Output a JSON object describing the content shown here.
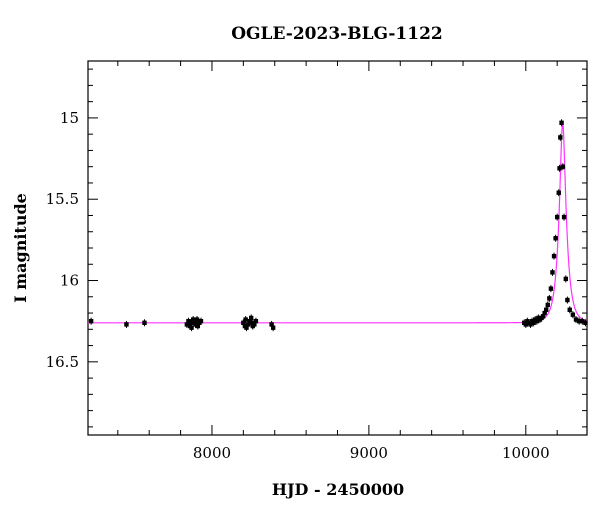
{
  "chart_data": {
    "type": "scatter",
    "title": "OGLE-2023-BLG-1122",
    "xlabel": "HJD - 2450000",
    "ylabel": "I magnitude",
    "xlim": [
      7210,
      10390
    ],
    "ylim": [
      16.95,
      14.65
    ],
    "y_inverted": true,
    "x_major_ticks": [
      8000,
      9000,
      10000
    ],
    "x_minor_step": 200,
    "y_major_ticks": [
      15,
      15.5,
      16,
      16.5
    ],
    "y_minor_step": 0.1,
    "x_tick_labels": [
      "8000",
      "9000",
      "10000"
    ],
    "y_tick_labels": [
      "15",
      "15.5",
      "16",
      "16.5"
    ],
    "model": {
      "color": "#ff33ff",
      "baseline": 16.26,
      "t0": 10235,
      "peak": 15.03,
      "tE": 45
    },
    "series": [
      {
        "marker_color": "#000000",
        "x": [
          7230,
          7455,
          7570,
          7840,
          7850,
          7860,
          7865,
          7870,
          7880,
          7890,
          7895,
          7900,
          7905,
          7910,
          7920,
          7930,
          8200,
          8210,
          8215,
          8220,
          8230,
          8240,
          8250,
          8255,
          8260,
          8270,
          8280,
          8380,
          8390,
          9990,
          10000,
          10010,
          10020,
          10030,
          10040,
          10050,
          10060,
          10070,
          10080,
          10090,
          10100,
          10110,
          10120,
          10130,
          10140,
          10150,
          10160,
          10170,
          10180,
          10190,
          10200,
          10210,
          10215,
          10220,
          10228,
          10236,
          10244,
          10255,
          10265,
          10280,
          10300,
          10320,
          10340,
          10360,
          10380
        ],
        "y": [
          16.25,
          16.27,
          16.26,
          16.27,
          16.25,
          16.28,
          16.26,
          16.29,
          16.24,
          16.26,
          16.27,
          16.25,
          16.24,
          16.28,
          16.26,
          16.25,
          16.26,
          16.28,
          16.24,
          16.29,
          16.27,
          16.25,
          16.23,
          16.26,
          16.28,
          16.27,
          16.25,
          16.27,
          16.29,
          16.26,
          16.27,
          16.25,
          16.26,
          16.27,
          16.25,
          16.26,
          16.24,
          16.25,
          16.23,
          16.24,
          16.23,
          16.22,
          16.2,
          16.18,
          16.15,
          16.11,
          16.05,
          15.95,
          15.85,
          15.74,
          15.61,
          15.46,
          15.31,
          15.12,
          15.03,
          15.3,
          15.61,
          15.99,
          16.12,
          16.18,
          16.21,
          16.24,
          16.25,
          16.25,
          16.26
        ]
      }
    ]
  }
}
